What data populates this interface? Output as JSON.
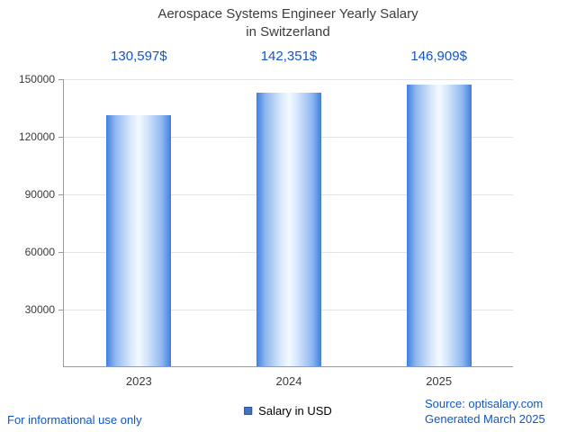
{
  "title": {
    "line1": "Aerospace Systems Engineer Yearly Salary",
    "line2": "in Switzerland"
  },
  "chart_data": {
    "type": "bar",
    "title": "Aerospace Systems Engineer Yearly Salary in Switzerland",
    "categories": [
      "2023",
      "2024",
      "2025"
    ],
    "values": [
      130597,
      142351,
      146909
    ],
    "value_labels": [
      "130,597$",
      "142,351$",
      "146,909$"
    ],
    "xlabel": "",
    "ylabel": "",
    "ylim": [
      0,
      150000
    ],
    "yticks": [
      30000,
      60000,
      90000,
      120000,
      150000
    ],
    "grid": true,
    "legend": [
      "Salary in USD"
    ],
    "legend_position": "bottom"
  },
  "legend": {
    "label": "Salary in USD"
  },
  "footer": {
    "left": "For informational use only",
    "source": "Source: optisalary.com",
    "generated": "Generated March 2025"
  },
  "colors": {
    "accent_blue": "#1155cc",
    "legend_swatch": "#4472c4",
    "bar_edge": "#3f7fe0",
    "title_gray": "#3d3d3d"
  }
}
